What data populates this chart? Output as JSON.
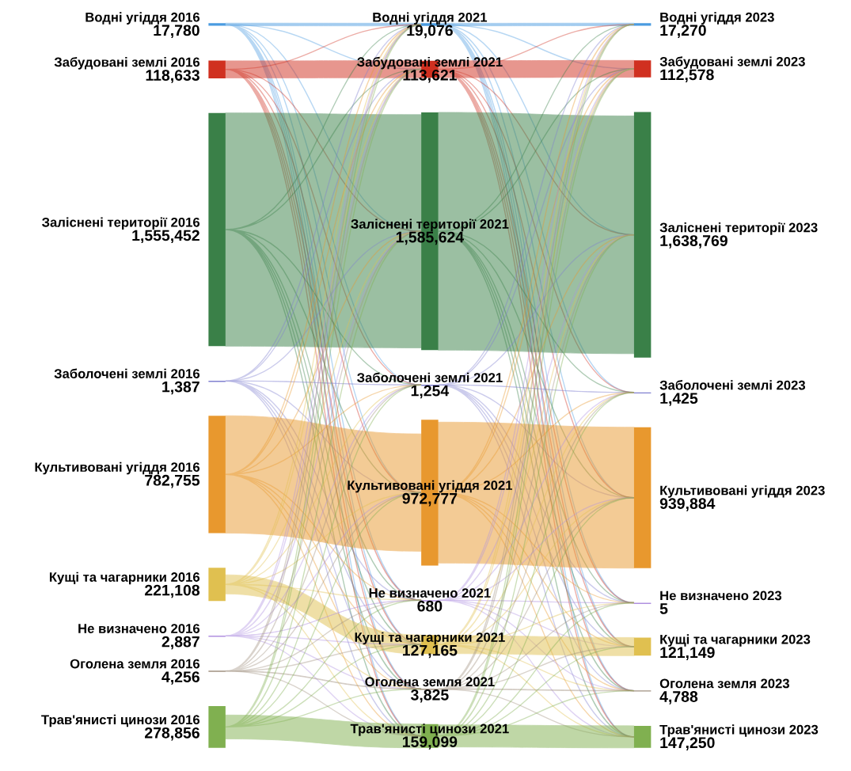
{
  "chart_data": [
    {
      "type": "other",
      "categories": [
        "Водні угіддя 2016",
        "Забудовані землі 2016",
        "Заліснені території 2016",
        "Заболочені землі 2016",
        "Культивовані угіддя 2016",
        "Кущі та чагарники 2016",
        "Не визначено 2016",
        "Оголена земля 2016",
        "Трав'янисті цинози 2016"
      ],
      "values": [
        17780,
        118633,
        1555452,
        1387,
        782755,
        221108,
        2887,
        4256,
        278856
      ],
      "value_labels": [
        "17,780",
        "118,633",
        "1,555,452",
        "1,387",
        "782,755",
        "221,108",
        "2,887",
        "4,256",
        "278,856"
      ],
      "colors": [
        "#4a9be0",
        "#d03020",
        "#3a8048",
        "#8080d0",
        "#e8982e",
        "#e0c050",
        "#b090e0",
        "#a09080",
        "#80b050"
      ]
    },
    {
      "type": "other",
      "categories": [
        "Водні угіддя 2021",
        "Забудовані землі 2021",
        "Заліснені території 2021",
        "Заболочені землі 2021",
        "Культивовані угіддя 2021",
        "Не визначено 2021",
        "Кущі та чагарники 2021",
        "Оголена земля 2021",
        "Трав'янисті цинози 2021"
      ],
      "values": [
        19076,
        113621,
        1585624,
        1254,
        972777,
        680,
        127165,
        3825,
        159099
      ],
      "value_labels": [
        "19,076",
        "113,621",
        "1,585,624",
        "1,254",
        "972,777",
        "680",
        "127,165",
        "3,825",
        "159,099"
      ],
      "colors": [
        "#4a9be0",
        "#d03020",
        "#3a8048",
        "#8080d0",
        "#e8982e",
        "#b090e0",
        "#e0c050",
        "#a09080",
        "#80b050"
      ]
    },
    {
      "type": "other",
      "categories": [
        "Водні угіддя 2023",
        "Забудовані землі 2023",
        "Заліснені території 2023",
        "Заболочені землі 2023",
        "Культивовані угіддя 2023",
        "Не визначено 2023",
        "Кущі та чагарники 2023",
        "Оголена земля 2023",
        "Трав'янисті цинози 2023"
      ],
      "values": [
        17270,
        112578,
        1638769,
        1425,
        939884,
        5,
        121149,
        4788,
        147250
      ],
      "value_labels": [
        "17,270",
        "112,578",
        "1,638,769",
        "1,425",
        "939,884",
        "5",
        "121,149",
        "4,788",
        "147,250"
      ],
      "colors": [
        "#4a9be0",
        "#d03020",
        "#3a8048",
        "#8080d0",
        "#e8982e",
        "#b090e0",
        "#e0c050",
        "#a09080",
        "#80b050"
      ]
    }
  ]
}
